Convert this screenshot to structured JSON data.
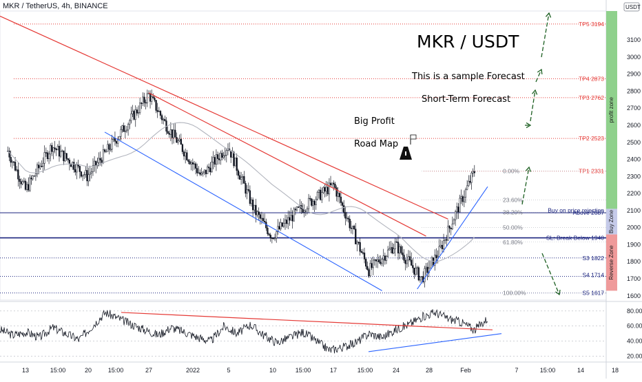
{
  "header": {
    "symbol_text": "MKR / TetherUS, 4h, BINANCE",
    "currency": "USDT"
  },
  "annotations": {
    "title": "MKR / USDT",
    "sample": "This is a sample Forecast",
    "short_term": "Short-Term Forecast",
    "big_profit": "Big Profit",
    "road_map": "Road Map"
  },
  "colors": {
    "up": "#131722",
    "down": "#131722",
    "resistance": "#e53935",
    "support": "#2962ff",
    "arrow": "#1b5e20",
    "profit_zone": "#8fd18c",
    "buy_zone": "#c5cae9",
    "reverse_zone": "#ef9a9a"
  },
  "chart_data": [
    {
      "type": "candlestick",
      "title": "MKR / TetherUS, 4h, BINANCE",
      "y_axis": {
        "unit": "USDT",
        "ylim": [
          1575,
          3270
        ],
        "ticks": [
          1600,
          1700,
          1800,
          1900,
          2000,
          2100,
          2200,
          2300,
          2400,
          2500,
          2600,
          2700,
          2800,
          2900,
          3000,
          3100
        ]
      },
      "x_axis": {
        "ticks": [
          "13",
          "15:00",
          "20",
          "15:00",
          "27",
          "2022",
          "5",
          "10",
          "15:00",
          "17",
          "15:00",
          "24",
          "28",
          "Feb",
          "7",
          "15:00",
          "14",
          "18"
        ]
      },
      "price_anchors": [
        {
          "x": "Dec 11",
          "price": 2450
        },
        {
          "x": "Dec 13",
          "price": 2220
        },
        {
          "x": "Dec 16",
          "price": 2480
        },
        {
          "x": "Dec 20",
          "price": 2300
        },
        {
          "x": "Dec 23",
          "price": 2500
        },
        {
          "x": "Dec 27",
          "price": 2780
        },
        {
          "x": "Dec 29",
          "price": 2600
        },
        {
          "x": "Jan 2",
          "price": 2300
        },
        {
          "x": "Jan 5",
          "price": 2480
        },
        {
          "x": "Jan 8",
          "price": 2100
        },
        {
          "x": "Jan 10",
          "price": 1950
        },
        {
          "x": "Jan 13",
          "price": 2100
        },
        {
          "x": "Jan 17",
          "price": 2250
        },
        {
          "x": "Jan 19",
          "price": 2000
        },
        {
          "x": "Jan 21",
          "price": 1750
        },
        {
          "x": "Jan 24",
          "price": 1900
        },
        {
          "x": "Jan 27",
          "price": 1700
        },
        {
          "x": "Jan 29",
          "price": 1860
        },
        {
          "x": "Jan 31",
          "price": 2100
        },
        {
          "x": "Feb 2",
          "price": 2330
        }
      ],
      "levels": [
        {
          "label": "TP5  3194",
          "price": 3194,
          "color": "#e53935"
        },
        {
          "label": "TP4 2873",
          "price": 2873,
          "color": "#e53935"
        },
        {
          "label": "TP3 2762",
          "price": 2762,
          "color": "#e53935"
        },
        {
          "label": "TP2 2523",
          "price": 2523,
          "color": "#e53935"
        },
        {
          "label": "TP1 2331",
          "price": 2331,
          "color": "#e53935"
        },
        {
          "label": "Buy on price rejection",
          "price": 2102,
          "color": "#1a237e"
        },
        {
          "label": "Above 2087",
          "price": 2087,
          "color": "#1a237e"
        },
        {
          "label": "SL: Break Below 1940",
          "price": 1940,
          "color": "#1a237e"
        },
        {
          "label": "S3 1822",
          "price": 1822,
          "color": "#1a237e"
        },
        {
          "label": "S4 1714",
          "price": 1714,
          "color": "#1a237e"
        },
        {
          "label": "S5 1617",
          "price": 1617,
          "color": "#1a237e"
        }
      ],
      "fibonacci": [
        {
          "label": "0.00%",
          "price": 2331
        },
        {
          "label": "23.60%",
          "price": 2163
        },
        {
          "label": "38.20%",
          "price": 2090
        },
        {
          "label": "50.00%",
          "price": 2000
        },
        {
          "label": "61.80%",
          "price": 1915
        },
        {
          "label": "100.00%",
          "price": 1617
        }
      ],
      "zones": [
        "profit zone",
        "Buy Zone",
        "Reverse Zone"
      ]
    },
    {
      "type": "line",
      "title": "",
      "y_axis": {
        "ylim": [
          15,
          88
        ],
        "ticks": [
          "80.00",
          "60.00",
          "40.00",
          "20.00"
        ]
      },
      "anchors": [
        55,
        48,
        52,
        45,
        58,
        50,
        42,
        60,
        78,
        70,
        62,
        55,
        48,
        58,
        52,
        45,
        40,
        60,
        50,
        62,
        48,
        38,
        45,
        52,
        40,
        28,
        32,
        38,
        50,
        45,
        55,
        62,
        72,
        78,
        70,
        65,
        55,
        70
      ]
    }
  ]
}
